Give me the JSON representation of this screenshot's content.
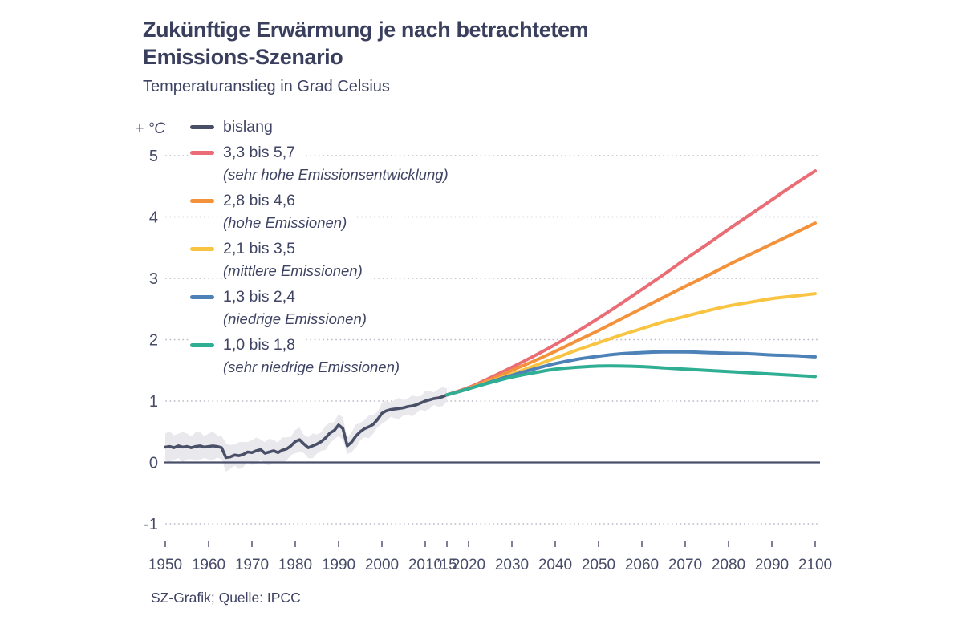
{
  "header": {
    "title_line1": "Zukünftige Erwärmung je nach betrachtetem",
    "title_line2": "Emissions-Szenario",
    "subtitle": "Temperaturanstieg in Grad Celsius"
  },
  "footer": {
    "source": "SZ-Grafik; Quelle: IPCC"
  },
  "legend": {
    "unit_label": "+ °C",
    "items": [
      {
        "id": "bislang",
        "label": "bislang",
        "sublabel": "",
        "color": "#4a4f68"
      },
      {
        "id": "sehr-hohe-emissionen",
        "label": "3,3 bis 5,7",
        "sublabel": "(sehr hohe Emissionsentwicklung)",
        "color": "#ea6d76"
      },
      {
        "id": "hohe-emissionen",
        "label": "2,8 bis 4,6",
        "sublabel": "(hohe Emissionen)",
        "color": "#f3923a"
      },
      {
        "id": "mittlere-emissionen",
        "label": "2,1 bis 3,5",
        "sublabel": "(mittlere Emissionen)",
        "color": "#f9c441"
      },
      {
        "id": "niedrige-emissionen",
        "label": "1,3 bis 2,4",
        "sublabel": "(niedrige Emissionen)",
        "color": "#4d82b8"
      },
      {
        "id": "sehr-niedrige-emissionen",
        "label": "1,0 bis 1,8",
        "sublabel": "(sehr niedrige Emissionen)",
        "color": "#2fae93"
      }
    ]
  },
  "chart_data": {
    "type": "line",
    "title": "Zukünftige Erwärmung je nach betrachtetem Emissions-Szenario",
    "subtitle": "Temperaturanstieg in Grad Celsius",
    "grid": "dotted-horizontal",
    "legend_position": "top-left",
    "x_axis": {
      "min": 1950,
      "max": 2100,
      "ticks": [
        {
          "year": 1950,
          "label": "1950"
        },
        {
          "year": 1960,
          "label": "1960"
        },
        {
          "year": 1970,
          "label": "1970"
        },
        {
          "year": 1980,
          "label": "1980"
        },
        {
          "year": 1990,
          "label": "1990"
        },
        {
          "year": 2000,
          "label": "2000"
        },
        {
          "year": 2010,
          "label": "2010"
        },
        {
          "year": 2015,
          "label": "’15"
        },
        {
          "year": 2020,
          "label": "2020"
        },
        {
          "year": 2030,
          "label": "2030"
        },
        {
          "year": 2040,
          "label": "2040"
        },
        {
          "year": 2050,
          "label": "2050"
        },
        {
          "year": 2060,
          "label": "2060"
        },
        {
          "year": 2070,
          "label": "2070"
        },
        {
          "year": 2080,
          "label": "2080"
        },
        {
          "year": 2090,
          "label": "2090"
        },
        {
          "year": 2100,
          "label": "2100"
        }
      ]
    },
    "y_axis": {
      "min": -1,
      "max": 5,
      "unit": "+ °C",
      "ticks": [
        {
          "v": 5,
          "label": "5"
        },
        {
          "v": 4,
          "label": "4"
        },
        {
          "v": 3,
          "label": "3"
        },
        {
          "v": 2,
          "label": "2"
        },
        {
          "v": 1,
          "label": "1"
        },
        {
          "v": 0,
          "label": "0"
        },
        {
          "v": -1,
          "label": "-1"
        }
      ]
    },
    "historical": {
      "id": "bislang",
      "name": "bislang",
      "color": "#4a4f68",
      "band_color": "#e8e8ed",
      "band": {
        "start": 0.22,
        "end": 0.13
      },
      "years": [
        1950,
        1951,
        1952,
        1953,
        1954,
        1955,
        1956,
        1957,
        1958,
        1959,
        1960,
        1961,
        1962,
        1963,
        1964,
        1965,
        1966,
        1967,
        1968,
        1969,
        1970,
        1971,
        1972,
        1973,
        1974,
        1975,
        1976,
        1977,
        1978,
        1979,
        1980,
        1981,
        1982,
        1983,
        1984,
        1985,
        1986,
        1987,
        1988,
        1989,
        1990,
        1991,
        1992,
        1993,
        1994,
        1995,
        1996,
        1997,
        1998,
        1999,
        2000,
        2001,
        2002,
        2003,
        2004,
        2005,
        2006,
        2007,
        2008,
        2009,
        2010,
        2011,
        2012,
        2013,
        2014,
        2015
      ],
      "values": [
        0.25,
        0.26,
        0.24,
        0.27,
        0.25,
        0.26,
        0.24,
        0.26,
        0.27,
        0.25,
        0.26,
        0.27,
        0.26,
        0.24,
        0.08,
        0.09,
        0.12,
        0.11,
        0.13,
        0.17,
        0.16,
        0.19,
        0.21,
        0.15,
        0.17,
        0.19,
        0.16,
        0.2,
        0.22,
        0.27,
        0.34,
        0.37,
        0.3,
        0.24,
        0.27,
        0.3,
        0.34,
        0.4,
        0.48,
        0.52,
        0.61,
        0.55,
        0.27,
        0.33,
        0.43,
        0.5,
        0.55,
        0.58,
        0.62,
        0.7,
        0.8,
        0.84,
        0.86,
        0.87,
        0.88,
        0.89,
        0.91,
        0.92,
        0.94,
        0.97,
        1.0,
        1.02,
        1.04,
        1.05,
        1.07,
        1.1
      ]
    },
    "projections": [
      {
        "id": "sehr-hohe-emissionen",
        "name": "3,3 bis 5,7",
        "scenario": "sehr hohe Emissionsentwicklung",
        "range": [
          3.3,
          5.7
        ],
        "color": "#ea6d76",
        "years": [
          2015,
          2020,
          2025,
          2030,
          2035,
          2040,
          2045,
          2050,
          2055,
          2060,
          2065,
          2070,
          2075,
          2080,
          2085,
          2090,
          2095,
          2100
        ],
        "values": [
          1.1,
          1.22,
          1.38,
          1.55,
          1.73,
          1.92,
          2.13,
          2.35,
          2.58,
          2.82,
          3.06,
          3.31,
          3.55,
          3.8,
          4.04,
          4.28,
          4.52,
          4.75
        ]
      },
      {
        "id": "hohe-emissionen",
        "name": "2,8 bis 4,6",
        "scenario": "hohe Emissionen",
        "range": [
          2.8,
          4.6
        ],
        "color": "#f3923a",
        "years": [
          2015,
          2020,
          2025,
          2030,
          2035,
          2040,
          2045,
          2050,
          2055,
          2060,
          2065,
          2070,
          2075,
          2080,
          2085,
          2090,
          2095,
          2100
        ],
        "values": [
          1.1,
          1.21,
          1.35,
          1.5,
          1.65,
          1.81,
          1.98,
          2.15,
          2.33,
          2.51,
          2.69,
          2.87,
          3.04,
          3.22,
          3.39,
          3.56,
          3.73,
          3.9
        ]
      },
      {
        "id": "mittlere-emissionen",
        "name": "2,1 bis 3,5",
        "scenario": "mittlere Emissionen",
        "range": [
          2.1,
          3.5
        ],
        "color": "#f9c441",
        "years": [
          2015,
          2020,
          2025,
          2030,
          2035,
          2040,
          2045,
          2050,
          2055,
          2060,
          2065,
          2070,
          2075,
          2080,
          2085,
          2090,
          2095,
          2100
        ],
        "values": [
          1.1,
          1.2,
          1.32,
          1.44,
          1.57,
          1.7,
          1.83,
          1.95,
          2.07,
          2.18,
          2.29,
          2.38,
          2.47,
          2.55,
          2.61,
          2.67,
          2.71,
          2.75
        ]
      },
      {
        "id": "niedrige-emissionen",
        "name": "1,3 bis 2,4",
        "scenario": "niedrige Emissionen",
        "range": [
          1.3,
          2.4
        ],
        "color": "#4d82b8",
        "years": [
          2015,
          2020,
          2025,
          2030,
          2035,
          2040,
          2045,
          2050,
          2055,
          2060,
          2065,
          2070,
          2075,
          2080,
          2085,
          2090,
          2095,
          2100
        ],
        "values": [
          1.1,
          1.2,
          1.31,
          1.42,
          1.52,
          1.61,
          1.68,
          1.73,
          1.77,
          1.79,
          1.8,
          1.8,
          1.79,
          1.78,
          1.77,
          1.75,
          1.74,
          1.72
        ]
      },
      {
        "id": "sehr-niedrige-emissionen",
        "name": "1,0 bis 1,8",
        "scenario": "sehr niedrige Emissionen",
        "range": [
          1.0,
          1.8
        ],
        "color": "#2fae93",
        "years": [
          2015,
          2020,
          2025,
          2030,
          2035,
          2040,
          2045,
          2050,
          2055,
          2060,
          2065,
          2070,
          2075,
          2080,
          2085,
          2090,
          2095,
          2100
        ],
        "values": [
          1.1,
          1.2,
          1.3,
          1.39,
          1.46,
          1.52,
          1.55,
          1.57,
          1.57,
          1.56,
          1.54,
          1.52,
          1.5,
          1.48,
          1.46,
          1.44,
          1.42,
          1.4
        ]
      }
    ]
  }
}
